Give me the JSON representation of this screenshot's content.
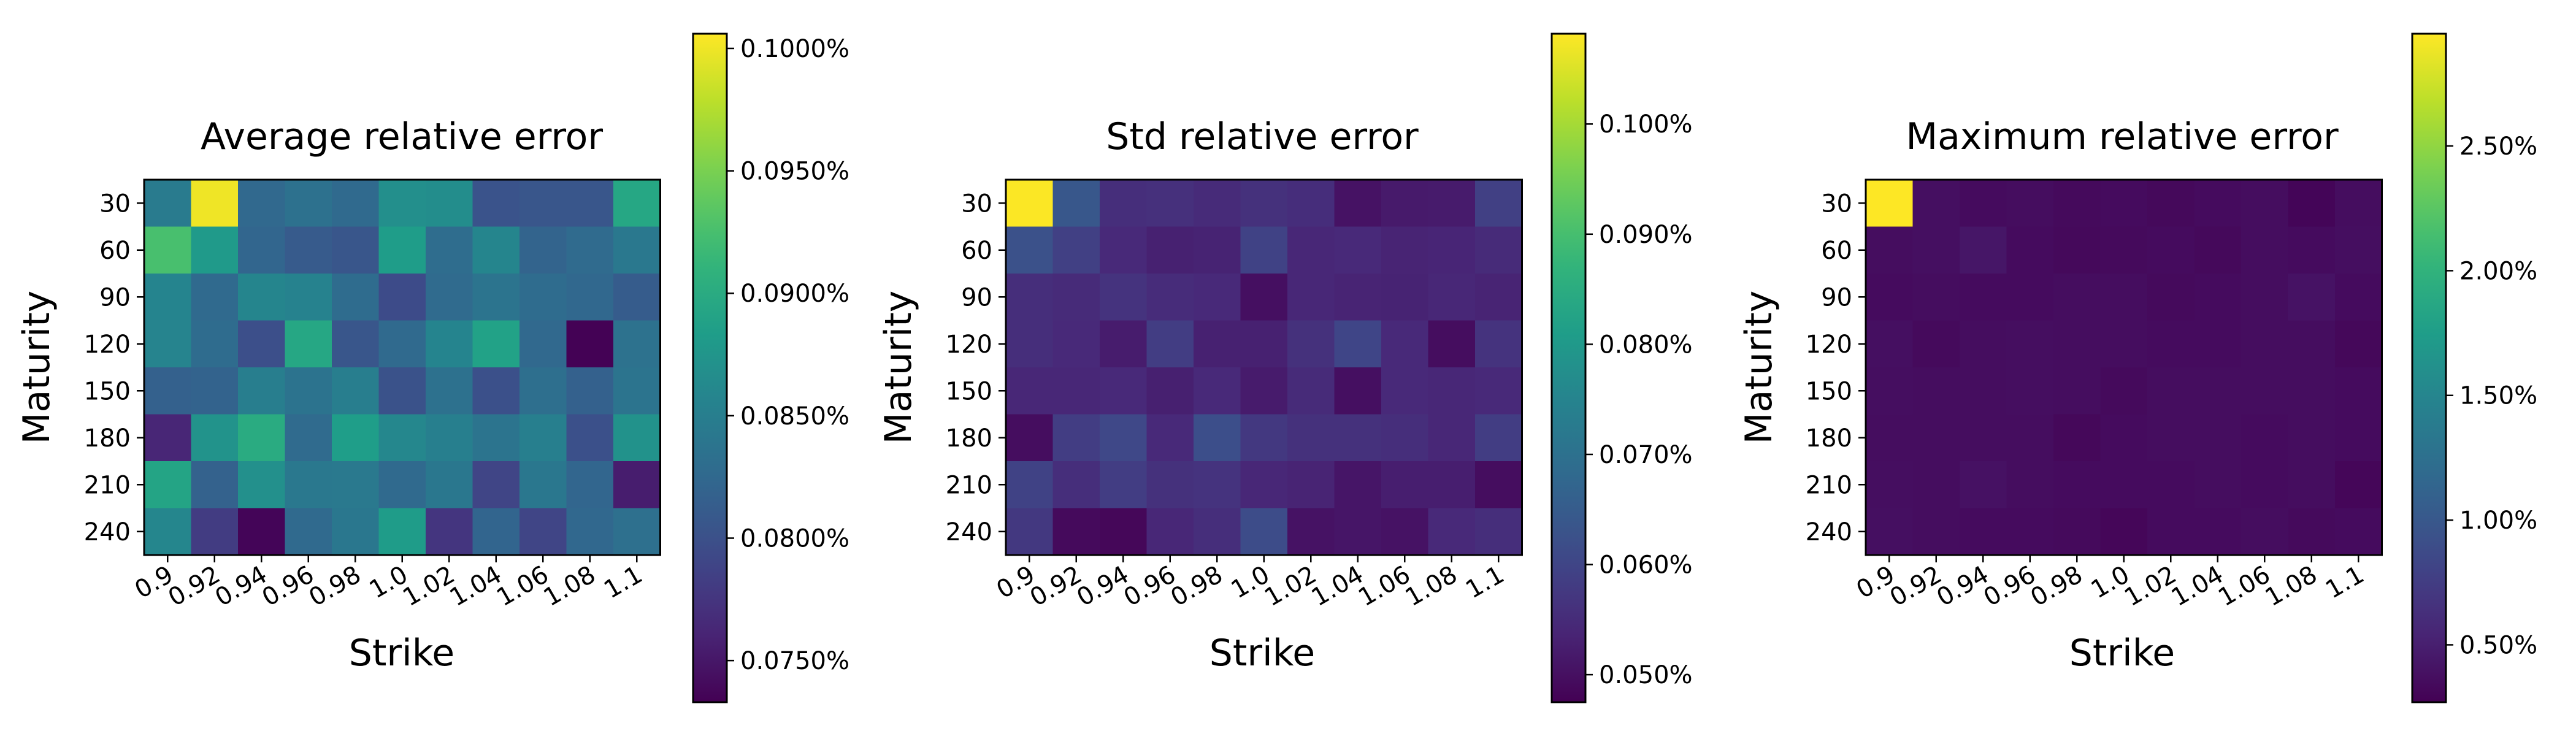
{
  "chart_data": [
    {
      "type": "heatmap",
      "title": "Average relative error",
      "xlabel": "Strike",
      "ylabel": "Maturity",
      "x": [
        "0.9",
        "0.92",
        "0.94",
        "0.96",
        "0.98",
        "1.0",
        "1.02",
        "1.04",
        "1.06",
        "1.08",
        "1.1"
      ],
      "y": [
        "30",
        "60",
        "90",
        "120",
        "150",
        "180",
        "210",
        "240"
      ],
      "values": [
        [
          0.0846,
          0.1,
          0.0825,
          0.0835,
          0.0826,
          0.0868,
          0.0866,
          0.0803,
          0.0806,
          0.0806,
          0.0895
        ],
        [
          0.0925,
          0.088,
          0.0822,
          0.0811,
          0.0806,
          0.0884,
          0.083,
          0.0858,
          0.082,
          0.0827,
          0.0843
        ],
        [
          0.0857,
          0.0826,
          0.0858,
          0.0854,
          0.0829,
          0.0795,
          0.0827,
          0.0838,
          0.0829,
          0.0824,
          0.0812
        ],
        [
          0.0856,
          0.0829,
          0.0799,
          0.0895,
          0.0806,
          0.0826,
          0.0857,
          0.0889,
          0.0825,
          0.0734,
          0.0836
        ],
        [
          0.0817,
          0.0819,
          0.085,
          0.0837,
          0.085,
          0.0802,
          0.0834,
          0.08,
          0.0832,
          0.0817,
          0.0838
        ],
        [
          0.0762,
          0.0873,
          0.09,
          0.0827,
          0.0885,
          0.086,
          0.0851,
          0.0838,
          0.0851,
          0.08,
          0.0872
        ],
        [
          0.0892,
          0.0818,
          0.0869,
          0.0843,
          0.0844,
          0.0826,
          0.0842,
          0.0789,
          0.0842,
          0.0822,
          0.0755
        ],
        [
          0.0859,
          0.0781,
          0.0736,
          0.0826,
          0.0842,
          0.0883,
          0.0775,
          0.0821,
          0.0789,
          0.0824,
          0.0833
        ]
      ],
      "colorbar": {
        "vmin": 0.0733,
        "vmax": 0.1006,
        "ticks": [
          0.075,
          0.08,
          0.085,
          0.09,
          0.095,
          0.1
        ],
        "tick_labels": [
          "0.0750%",
          "0.0800%",
          "0.0850%",
          "0.0900%",
          "0.0950%",
          "0.1000%"
        ]
      },
      "colormap": "viridis",
      "grid": false
    },
    {
      "type": "heatmap",
      "title": "Std relative error",
      "xlabel": "Strike",
      "ylabel": "Maturity",
      "x": [
        "0.9",
        "0.92",
        "0.94",
        "0.96",
        "0.98",
        "1.0",
        "1.02",
        "1.04",
        "1.06",
        "1.08",
        "1.1"
      ],
      "y": [
        "30",
        "60",
        "90",
        "120",
        "150",
        "180",
        "210",
        "240"
      ],
      "values": [
        [
          0.108,
          0.064,
          0.0555,
          0.0558,
          0.0548,
          0.056,
          0.0553,
          0.0505,
          0.0518,
          0.052,
          0.059
        ],
        [
          0.0625,
          0.059,
          0.0545,
          0.053,
          0.0533,
          0.0595,
          0.054,
          0.0545,
          0.0535,
          0.0538,
          0.0548
        ],
        [
          0.0555,
          0.0548,
          0.0565,
          0.055,
          0.0545,
          0.05,
          0.054,
          0.0535,
          0.0533,
          0.054,
          0.0535
        ],
        [
          0.0555,
          0.0545,
          0.0522,
          0.0585,
          0.053,
          0.053,
          0.056,
          0.06,
          0.0545,
          0.0495,
          0.0565
        ],
        [
          0.054,
          0.054,
          0.0545,
          0.0528,
          0.0545,
          0.052,
          0.0548,
          0.05,
          0.0545,
          0.054,
          0.0545
        ],
        [
          0.0495,
          0.0585,
          0.0605,
          0.0545,
          0.062,
          0.0575,
          0.056,
          0.056,
          0.0555,
          0.054,
          0.0585
        ],
        [
          0.0595,
          0.0555,
          0.0585,
          0.056,
          0.0565,
          0.054,
          0.0535,
          0.051,
          0.0525,
          0.0525,
          0.0495
        ],
        [
          0.0575,
          0.049,
          0.0485,
          0.054,
          0.0555,
          0.0615,
          0.0505,
          0.051,
          0.0505,
          0.0545,
          0.0555
        ]
      ],
      "colorbar": {
        "vmin": 0.0475,
        "vmax": 0.1082,
        "ticks": [
          0.05,
          0.06,
          0.07,
          0.08,
          0.09,
          0.1
        ],
        "tick_labels": [
          "0.050%",
          "0.060%",
          "0.070%",
          "0.080%",
          "0.090%",
          "0.100%"
        ]
      },
      "colormap": "viridis",
      "grid": false
    },
    {
      "type": "heatmap",
      "title": "Maximum relative error",
      "xlabel": "Strike",
      "ylabel": "Maturity",
      "x": [
        "0.9",
        "0.92",
        "0.94",
        "0.96",
        "0.98",
        "1.0",
        "1.02",
        "1.04",
        "1.06",
        "1.08",
        "1.1"
      ],
      "y": [
        "30",
        "60",
        "90",
        "120",
        "150",
        "180",
        "210",
        "240"
      ],
      "values": [
        [
          2.95,
          0.38,
          0.35,
          0.36,
          0.34,
          0.35,
          0.33,
          0.35,
          0.36,
          0.3,
          0.36
        ],
        [
          0.36,
          0.38,
          0.43,
          0.35,
          0.33,
          0.34,
          0.35,
          0.33,
          0.36,
          0.35,
          0.37
        ],
        [
          0.35,
          0.36,
          0.35,
          0.35,
          0.36,
          0.36,
          0.34,
          0.35,
          0.36,
          0.4,
          0.35
        ],
        [
          0.38,
          0.34,
          0.36,
          0.37,
          0.36,
          0.36,
          0.35,
          0.35,
          0.36,
          0.36,
          0.32
        ],
        [
          0.37,
          0.36,
          0.36,
          0.37,
          0.36,
          0.34,
          0.36,
          0.36,
          0.36,
          0.36,
          0.35
        ],
        [
          0.36,
          0.36,
          0.36,
          0.36,
          0.32,
          0.35,
          0.36,
          0.36,
          0.35,
          0.36,
          0.35
        ],
        [
          0.37,
          0.36,
          0.39,
          0.36,
          0.35,
          0.35,
          0.35,
          0.36,
          0.35,
          0.36,
          0.31
        ],
        [
          0.38,
          0.36,
          0.35,
          0.35,
          0.34,
          0.31,
          0.35,
          0.35,
          0.36,
          0.34,
          0.35
        ]
      ],
      "colorbar": {
        "vmin": 0.27,
        "vmax": 2.95,
        "ticks": [
          0.5,
          1.0,
          1.5,
          2.0,
          2.5
        ],
        "tick_labels": [
          "0.50%",
          "1.00%",
          "1.50%",
          "2.00%",
          "2.50%"
        ]
      },
      "colormap": "viridis",
      "grid": false
    }
  ]
}
